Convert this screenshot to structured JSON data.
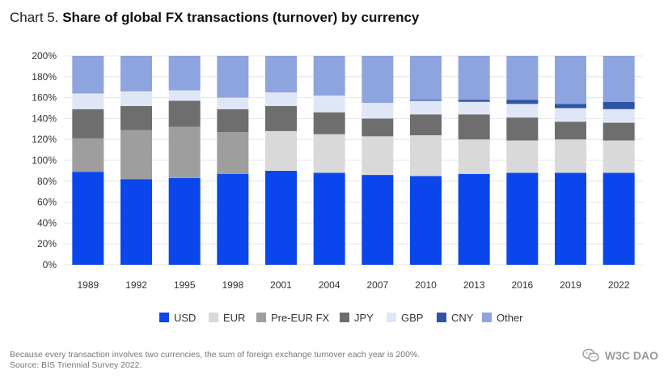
{
  "title_prefix": "Chart 5.",
  "title_main": "Share of global FX transactions (turnover) by currency",
  "footnote_1": "Because every transaction involves two currencies, the sum of foreign exchange turnover each year is 200%.",
  "footnote_2": "Source: BIS Triennial Survey 2022.",
  "watermark": "W3C DAO",
  "colors": {
    "USD": "#0a46ec",
    "EUR": "#d9d9d9",
    "Pre-EUR FX": "#9e9e9e",
    "JPY": "#6e6e6e",
    "GBP": "#dfe7f7",
    "CNY": "#2d54a5",
    "Other": "#8ea4de",
    "grid": "#e4e4e4",
    "axis_text": "#333333"
  },
  "chart_data": {
    "type": "bar",
    "stacked": true,
    "title": "Share of global FX transactions (turnover) by currency",
    "xlabel": "",
    "ylabel": "",
    "ylim": [
      0,
      200
    ],
    "yticks": [
      0,
      20,
      40,
      60,
      80,
      100,
      120,
      140,
      160,
      180,
      200
    ],
    "ytick_labels": [
      "0%",
      "20%",
      "40%",
      "60%",
      "80%",
      "100%",
      "120%",
      "140%",
      "160%",
      "180%",
      "200%"
    ],
    "categories": [
      "1989",
      "1992",
      "1995",
      "1998",
      "2001",
      "2004",
      "2007",
      "2010",
      "2013",
      "2016",
      "2019",
      "2022"
    ],
    "series": [
      {
        "name": "USD",
        "values": [
          89,
          82,
          83,
          87,
          90,
          88,
          86,
          85,
          87,
          88,
          88,
          88
        ]
      },
      {
        "name": "EUR",
        "values": [
          0,
          0,
          0,
          0,
          38,
          37,
          37,
          39,
          33,
          31,
          32,
          31
        ]
      },
      {
        "name": "Pre-EUR FX",
        "values": [
          32,
          47,
          49,
          40,
          0,
          0,
          0,
          0,
          0,
          0,
          0,
          0
        ]
      },
      {
        "name": "JPY",
        "values": [
          28,
          23,
          25,
          22,
          24,
          21,
          17,
          20,
          24,
          22,
          17,
          17
        ]
      },
      {
        "name": "GBP",
        "values": [
          15,
          14,
          10,
          11,
          13,
          16,
          15,
          13,
          12,
          13,
          13,
          13
        ]
      },
      {
        "name": "CNY",
        "values": [
          0,
          0,
          0,
          0,
          0,
          0,
          0,
          1,
          2,
          4,
          4,
          7
        ]
      },
      {
        "name": "Other",
        "values": [
          36,
          34,
          33,
          40,
          35,
          38,
          45,
          42,
          42,
          42,
          46,
          44
        ]
      }
    ],
    "legend": [
      "USD",
      "EUR",
      "Pre-EUR FX",
      "JPY",
      "GBP",
      "CNY",
      "Other"
    ],
    "legend_position": "bottom",
    "grid": true
  }
}
